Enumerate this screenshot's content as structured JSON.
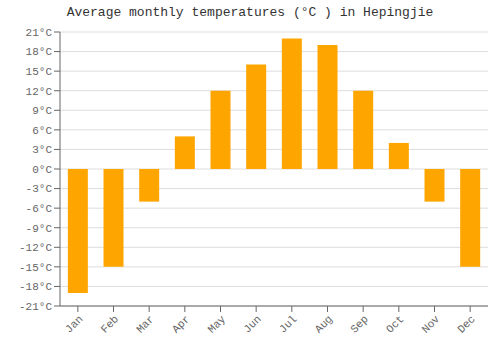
{
  "chart_data": {
    "type": "bar",
    "title": "Average monthly temperatures (°C ) in Hepingjie",
    "categories": [
      "Jan",
      "Feb",
      "Mar",
      "Apr",
      "May",
      "Jun",
      "Jul",
      "Aug",
      "Sep",
      "Oct",
      "Nov",
      "Dec"
    ],
    "values": [
      -19,
      -15,
      -5,
      5,
      12,
      16,
      20,
      19,
      12,
      4,
      -5,
      -15
    ],
    "color": "#FFA500",
    "ylim": [
      -21,
      21
    ],
    "yticks": [
      {
        "value": -21,
        "label": "-21°C"
      },
      {
        "value": -18,
        "label": "-18°C"
      },
      {
        "value": -15,
        "label": "-15°C"
      },
      {
        "value": -12,
        "label": "-12°C"
      },
      {
        "value": -9,
        "label": "-9°C"
      },
      {
        "value": -6,
        "label": "-6°C"
      },
      {
        "value": -3,
        "label": "-3°C"
      },
      {
        "value": 0,
        "label": "0°C"
      },
      {
        "value": 3,
        "label": "3°C"
      },
      {
        "value": 6,
        "label": "6°C"
      },
      {
        "value": 9,
        "label": "9°C"
      },
      {
        "value": 12,
        "label": "12°C"
      },
      {
        "value": 15,
        "label": "15°C"
      },
      {
        "value": 18,
        "label": "18°C"
      },
      {
        "value": 21,
        "label": "21°C"
      }
    ],
    "grid": true
  }
}
